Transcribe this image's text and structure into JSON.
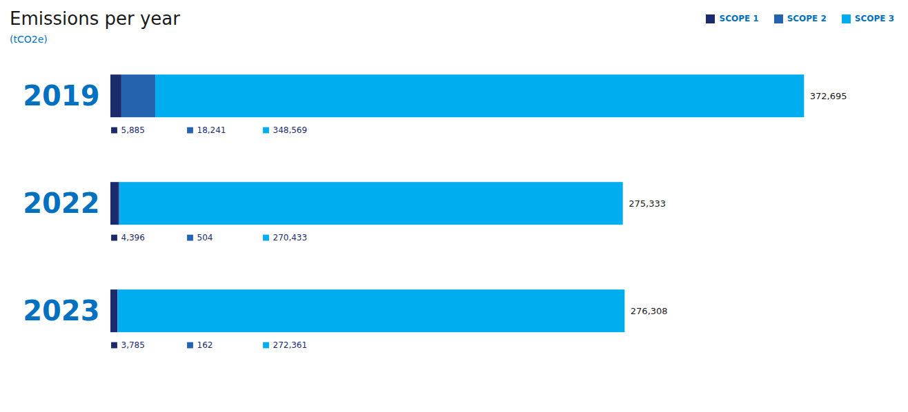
{
  "chart_data": {
    "type": "bar",
    "orientation": "horizontal",
    "stacked": true,
    "title": "Emissions per year",
    "subtitle": "(tCO2e)",
    "categories": [
      "2019",
      "2022",
      "2023"
    ],
    "series": [
      {
        "name": "SCOPE 1",
        "color": "#1b2a6b",
        "values": [
          5885,
          4396,
          3785
        ],
        "value_labels": [
          "5,885",
          "4,396",
          "3,785"
        ]
      },
      {
        "name": "SCOPE 2",
        "color": "#2563ae",
        "values": [
          18241,
          504,
          162
        ],
        "value_labels": [
          "18,241",
          "504",
          "162"
        ]
      },
      {
        "name": "SCOPE 3",
        "color": "#00aeef",
        "values": [
          348569,
          270433,
          272361
        ],
        "value_labels": [
          "348,569",
          "270,433",
          "272,361"
        ]
      }
    ],
    "totals": [
      372695,
      275333,
      276308
    ],
    "total_labels": [
      "372,695",
      "275,333",
      "276,308"
    ],
    "xlim": [
      0,
      421145.35
    ],
    "data_labels": true,
    "tick_labels": "y",
    "grid": false,
    "legend": "upper right"
  }
}
